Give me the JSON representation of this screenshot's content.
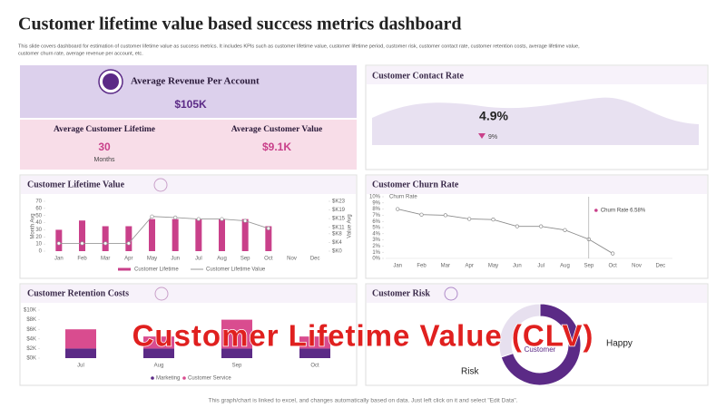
{
  "title": "Customer lifetime value based success metrics dashboard",
  "description": [
    "This slide covers dashboard for estimation of customer lifetime  value as success metrics. It includes KPIs  such as customer lifetime value, customer lifetime  period, customer risk, customer contact rate, customer retention costs, average lifetime value,",
    "customer churn rate, average revenue per account, etc."
  ],
  "kpis": {
    "arpa": {
      "label": "Average Revenue Per Account",
      "value": "$105K"
    },
    "lifetime": {
      "label": "Average Customer Lifetime",
      "value": "30",
      "unit": "Months"
    },
    "acv": {
      "label": "Average Customer Value",
      "value": "$9.1K"
    }
  },
  "contact_rate": {
    "title": "Customer Contact Rate",
    "value": "4.9%",
    "change": "9%"
  },
  "chart_data": [
    {
      "type": "combo",
      "title": "Customer Lifetime Value",
      "categories": [
        "Jan",
        "Feb",
        "Mar",
        "Apr",
        "May",
        "Jun",
        "Jul",
        "Aug",
        "Sep",
        "Oct",
        "Nov",
        "Dec"
      ],
      "y_label": "Month Avg",
      "y2_label": "Value Avg",
      "ylim": [
        0,
        70
      ],
      "yticks": [
        0,
        10,
        20,
        30,
        40,
        50,
        60,
        70
      ],
      "y2lim": [
        0,
        23
      ],
      "y2ticks": [
        {
          "value": 0,
          "label": "$K0"
        },
        {
          "value": 4,
          "label": "$K4"
        },
        {
          "value": 8,
          "label": "$K8"
        },
        {
          "value": 11,
          "label": "$K11"
        },
        {
          "value": 15,
          "label": "$K15"
        },
        {
          "value": 19,
          "label": "$K19"
        },
        {
          "value": 23,
          "label": "$K23"
        }
      ],
      "series": [
        {
          "name": "Customer Lifetime",
          "kind": "bar",
          "color": "#c9408a",
          "values": [
            30,
            43,
            35,
            35,
            45,
            45,
            45,
            45,
            45,
            35,
            null,
            null
          ]
        },
        {
          "name": "Customer Lifetime Value",
          "kind": "line",
          "axis": "y2",
          "color": "#9a9a9a",
          "values": [
            3.6,
            3.6,
            3.6,
            3.6,
            16,
            15.5,
            14.8,
            14.8,
            14,
            10.5,
            null,
            null
          ]
        }
      ]
    },
    {
      "type": "line",
      "title": "Customer Churn Rate",
      "categories": [
        "Jan",
        "Feb",
        "Mar",
        "Apr",
        "May",
        "Jun",
        "Jul",
        "Aug",
        "Sep",
        "Oct",
        "Nov",
        "Dec"
      ],
      "ylim": [
        0,
        10
      ],
      "yticks": [
        {
          "value": 0,
          "label": "0%"
        },
        {
          "value": 1,
          "label": "1%"
        },
        {
          "value": 2,
          "label": "2%"
        },
        {
          "value": 3,
          "label": "3%"
        },
        {
          "value": 4,
          "label": "4%"
        },
        {
          "value": 5,
          "label": "5%"
        },
        {
          "value": 6,
          "label": "6%"
        },
        {
          "value": 7,
          "label": "7%"
        },
        {
          "value": 8,
          "label": "8%"
        },
        {
          "value": 9,
          "label": "9%"
        },
        {
          "value": 10,
          "label": "10%"
        }
      ],
      "series": [
        {
          "name": "Churn Rate",
          "color": "#8c8c8c",
          "values": [
            8,
            7.1,
            7,
            6.4,
            6.3,
            5.2,
            5.2,
            4.6,
            3.1,
            0.8,
            null,
            null
          ]
        }
      ],
      "annotation": "Churn Rate 6.58%",
      "annotation_color": "#c9408a"
    },
    {
      "type": "stacked_bar",
      "title": "Customer Retention Costs",
      "categories": [
        "Jul",
        "Aug",
        "Sep",
        "Oct"
      ],
      "ylim": [
        0,
        10
      ],
      "yticks": [
        {
          "value": 0,
          "label": "$0K"
        },
        {
          "value": 2,
          "label": "$2K"
        },
        {
          "value": 4,
          "label": "$4K"
        },
        {
          "value": 6,
          "label": "$6K"
        },
        {
          "value": 8,
          "label": "$8K"
        },
        {
          "value": 10,
          "label": "$10K"
        }
      ],
      "series": [
        {
          "name": "Marketing",
          "color": "#5b2a86",
          "values": [
            2,
            2,
            2,
            2
          ]
        },
        {
          "name": "Customer Service",
          "color": "#d94c8f",
          "values": [
            4,
            2.5,
            6,
            2.5
          ]
        }
      ]
    },
    {
      "type": "donut",
      "title": "Customer Risk",
      "center_label": "Customer",
      "categories": [
        "Happy",
        "Risk"
      ],
      "values": [
        70,
        30
      ],
      "colors": [
        "#5b2a86",
        "#e7e0ef"
      ]
    }
  ],
  "overlay": "Customer Lifetime Value (CLV)",
  "footer": "This graph/chart is linked to excel, and changes automatically based on data. Just left click on it and select \"Edit Data\"."
}
